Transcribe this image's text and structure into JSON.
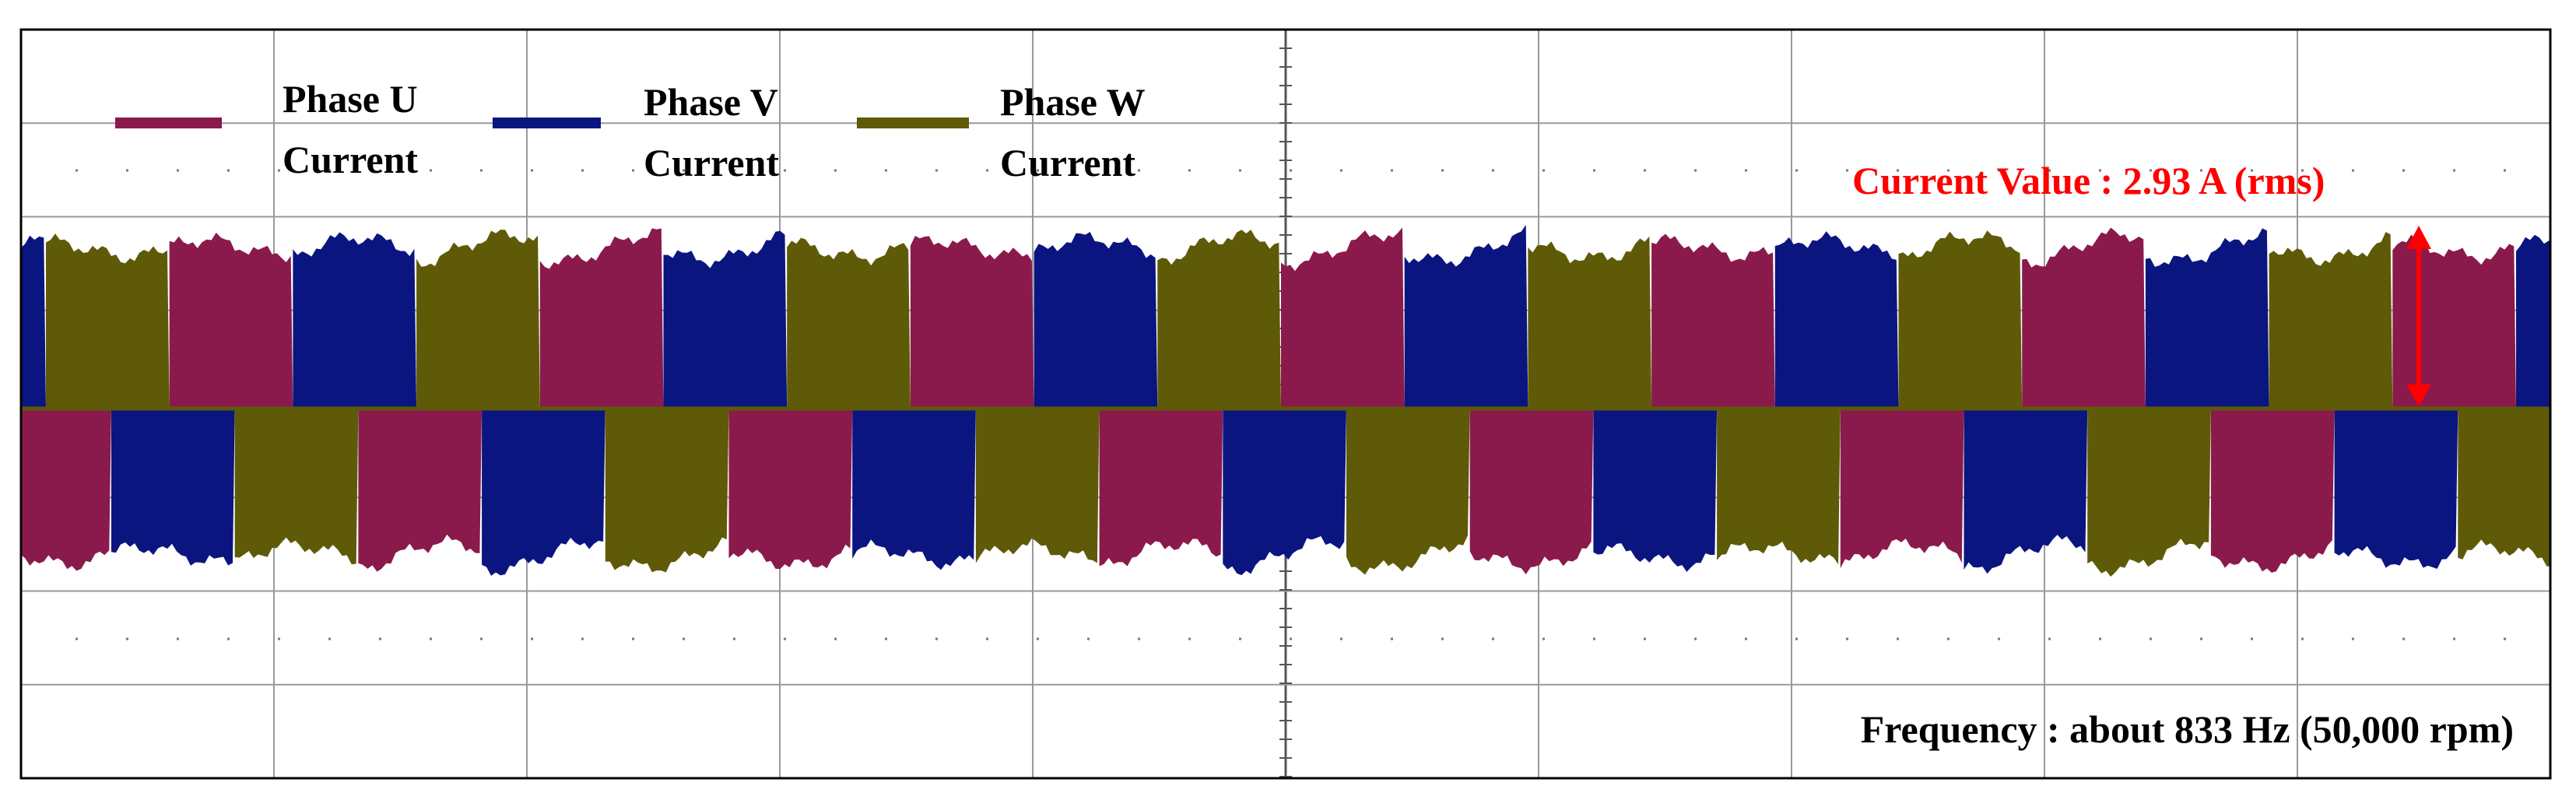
{
  "chart_data": {
    "type": "waveform",
    "series": [
      {
        "name": "Phase U Current",
        "color": "#8b1a4c"
      },
      {
        "name": "Phase V Current",
        "color": "#0b1580"
      },
      {
        "name": "Phase W Current",
        "color": "#5e5a08"
      }
    ],
    "annotations": [
      "Current Value : 2.93 A (rms)",
      "Frequency : about 833 Hz (50,000 rpm)"
    ],
    "annotation_color": "#ff0000"
  }
}
